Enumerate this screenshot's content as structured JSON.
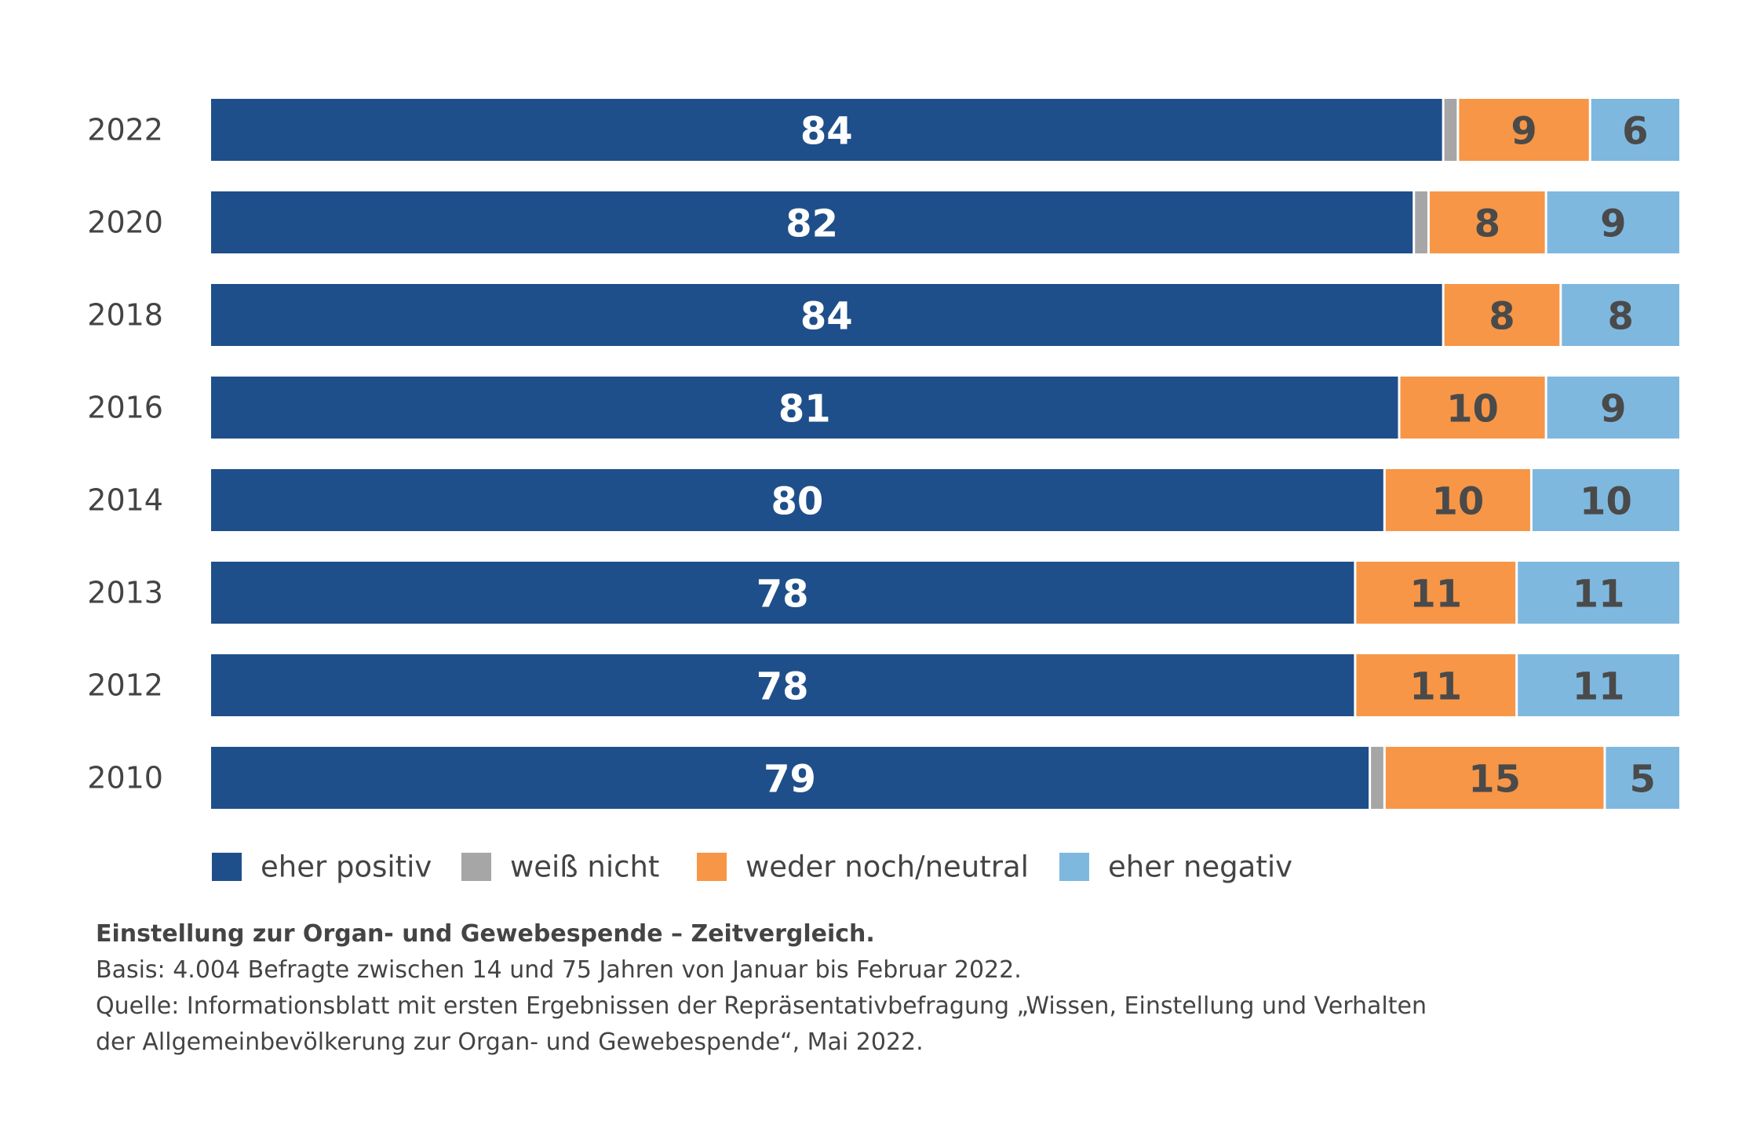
{
  "chart_data": {
    "type": "bar",
    "orientation": "horizontal",
    "stacked": true,
    "categories": [
      "2022",
      "2020",
      "2018",
      "2016",
      "2014",
      "2013",
      "2012",
      "2010"
    ],
    "series": [
      {
        "name": "eher positiv",
        "color": "#1f4f8a",
        "label_color": "#ffffff",
        "values": [
          84,
          82,
          84,
          81,
          80,
          78,
          78,
          79
        ]
      },
      {
        "name": "weiß nicht",
        "color": "#a6a6a6",
        "label_color": "#4a4a4a",
        "values": [
          1,
          1,
          0,
          0,
          0,
          0,
          0,
          1
        ]
      },
      {
        "name": "weder noch/neutral",
        "color": "#f79646",
        "label_color": "#4a4a4a",
        "values": [
          9,
          8,
          8,
          10,
          10,
          11,
          11,
          15
        ]
      },
      {
        "name": "eher negativ",
        "color": "#7fb8df",
        "label_color": "#4a4a4a",
        "values": [
          6,
          9,
          8,
          9,
          10,
          11,
          11,
          5
        ]
      }
    ],
    "value_labels": [
      [
        "84",
        "",
        "9",
        "6"
      ],
      [
        "82",
        "",
        "8",
        "9"
      ],
      [
        "84",
        "",
        "8",
        "8"
      ],
      [
        "81",
        "",
        "10",
        "9"
      ],
      [
        "80",
        "",
        "10",
        "10"
      ],
      [
        "78",
        "",
        "11",
        "11"
      ],
      [
        "78",
        "",
        "11",
        "11"
      ],
      [
        "79",
        "",
        "15",
        "5"
      ]
    ],
    "xlim": [
      0,
      100
    ],
    "grid": false,
    "legend_position": "bottom",
    "title": "Einstellung zur Organ- und Gewebespende – Zeitvergleich."
  },
  "caption": {
    "title": "Einstellung zur Organ- und Gewebespende – Zeitvergleich.",
    "basis": "Basis: 4.004 Befragte zwischen 14 und 75 Jahren von Januar bis Februar 2022.",
    "source_line1": "Quelle: Informationsblatt mit ersten Ergebnissen der Repräsentativbefragung „Wissen, Einstellung und Verhalten",
    "source_line2": "der Allgemeinbevölkerung zur Organ- und Gewebespende“, Mai 2022."
  }
}
